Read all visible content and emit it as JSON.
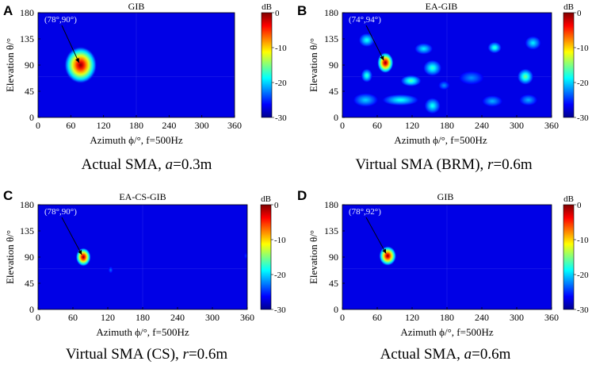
{
  "chart_data": [
    {
      "type": "heatmap",
      "panel": "A",
      "title": "GIB",
      "caption_prefix": "Actual SMA, ",
      "caption_var": "a",
      "caption_suffix": "=0.3m",
      "xlabel": "Azimuth ϕ/°, f=500Hz",
      "ylabel": "Elevation θ/°",
      "xticks": [
        "0",
        "60",
        "120",
        "180",
        "240",
        "300",
        "360"
      ],
      "yticks": [
        "0",
        "45",
        "90",
        "135",
        "180"
      ],
      "xlim": [
        0,
        360
      ],
      "ylim": [
        0,
        180
      ],
      "colorbar": {
        "unit": "dB",
        "ticks": [
          "0",
          "-10",
          "-20",
          "-30"
        ],
        "range": [
          -30,
          0
        ]
      },
      "annotation": "(78°,90°)",
      "peak": {
        "azimuth": 78,
        "elevation": 90
      },
      "blobs": [
        {
          "azimuth": 78,
          "elevation": 90,
          "spread_az": 30,
          "spread_el": 32,
          "level": 0
        }
      ]
    },
    {
      "type": "heatmap",
      "panel": "B",
      "title": "EA-GIB",
      "caption_prefix": "Virtual SMA (BRM), ",
      "caption_var": "r",
      "caption_suffix": "=0.6m",
      "xlabel": "Azimuth ϕ/°, f=500Hz",
      "ylabel": "Elevation θ/°",
      "xticks": [
        "0",
        "60",
        "120",
        "180",
        "240",
        "300",
        "360"
      ],
      "yticks": [
        "0",
        "45",
        "90",
        "135",
        "180"
      ],
      "xlim": [
        0,
        360
      ],
      "ylim": [
        0,
        180
      ],
      "colorbar": {
        "unit": "dB",
        "ticks": [
          "0",
          "-10",
          "-20",
          "-30"
        ],
        "range": [
          -30,
          0
        ]
      },
      "annotation": "(74°,94°)",
      "peak": {
        "azimuth": 74,
        "elevation": 94
      },
      "blobs": [
        {
          "azimuth": 74,
          "elevation": 94,
          "spread_az": 14,
          "spread_el": 18,
          "level": 0
        },
        {
          "azimuth": 42,
          "elevation": 133,
          "spread_az": 14,
          "spread_el": 12,
          "level": -18
        },
        {
          "azimuth": 42,
          "elevation": 72,
          "spread_az": 10,
          "spread_el": 12,
          "level": -17
        },
        {
          "azimuth": 118,
          "elevation": 63,
          "spread_az": 18,
          "spread_el": 10,
          "level": -16
        },
        {
          "azimuth": 100,
          "elevation": 30,
          "spread_az": 32,
          "spread_el": 10,
          "level": -18
        },
        {
          "azimuth": 155,
          "elevation": 85,
          "spread_az": 16,
          "spread_el": 14,
          "level": -17
        },
        {
          "azimuth": 155,
          "elevation": 20,
          "spread_az": 14,
          "spread_el": 14,
          "level": -18
        },
        {
          "azimuth": 140,
          "elevation": 118,
          "spread_az": 16,
          "spread_el": 10,
          "level": -19
        },
        {
          "azimuth": 40,
          "elevation": 30,
          "spread_az": 22,
          "spread_el": 12,
          "level": -20
        },
        {
          "azimuth": 222,
          "elevation": 68,
          "spread_az": 22,
          "spread_el": 12,
          "level": -22
        },
        {
          "azimuth": 262,
          "elevation": 120,
          "spread_az": 12,
          "spread_el": 10,
          "level": -17
        },
        {
          "azimuth": 315,
          "elevation": 70,
          "spread_az": 14,
          "spread_el": 14,
          "level": -15
        },
        {
          "azimuth": 328,
          "elevation": 128,
          "spread_az": 14,
          "spread_el": 12,
          "level": -19
        },
        {
          "azimuth": 258,
          "elevation": 28,
          "spread_az": 18,
          "spread_el": 10,
          "level": -21
        },
        {
          "azimuth": 320,
          "elevation": 30,
          "spread_az": 16,
          "spread_el": 10,
          "level": -21
        },
        {
          "azimuth": 175,
          "elevation": 55,
          "spread_az": 10,
          "spread_el": 8,
          "level": -22
        }
      ]
    },
    {
      "type": "heatmap",
      "panel": "C",
      "title": "EA-CS-GIB",
      "caption_prefix": "Virtual SMA (CS), ",
      "caption_var": "r",
      "caption_suffix": "=0.6m",
      "xlabel": "Azimuth ϕ/°, f=500Hz",
      "ylabel": "Elevation θ/°",
      "xticks": [
        "0",
        "60",
        "120",
        "180",
        "240",
        "300",
        "360"
      ],
      "yticks": [
        "0",
        "45",
        "90",
        "135",
        "180"
      ],
      "xlim": [
        0,
        360
      ],
      "ylim": [
        0,
        180
      ],
      "colorbar": {
        "unit": "dB",
        "ticks": [
          "0",
          "-10",
          "-20",
          "-30"
        ],
        "range": [
          -30,
          0
        ]
      },
      "annotation": "(78°,90°)",
      "peak": {
        "azimuth": 78,
        "elevation": 90
      },
      "blobs": [
        {
          "azimuth": 78,
          "elevation": 90,
          "spread_az": 13,
          "spread_el": 16,
          "level": 0
        },
        {
          "azimuth": 125,
          "elevation": 68,
          "spread_az": 4,
          "spread_el": 6,
          "level": -23
        },
        {
          "azimuth": 358,
          "elevation": 92,
          "spread_az": 4,
          "spread_el": 6,
          "level": -25
        }
      ]
    },
    {
      "type": "heatmap",
      "panel": "D",
      "title": "GIB",
      "caption_prefix": "Actual SMA, ",
      "caption_var": "a",
      "caption_suffix": "=0.6m",
      "xlabel": "Azimuth ϕ/°, f=500Hz",
      "ylabel": "Elevation θ/°",
      "xticks": [
        "0",
        "60",
        "120",
        "180",
        "240",
        "300",
        "360"
      ],
      "yticks": [
        "0",
        "45",
        "90",
        "135",
        "180"
      ],
      "xlim": [
        0,
        360
      ],
      "ylim": [
        0,
        180
      ],
      "colorbar": {
        "unit": "dB",
        "ticks": [
          "0",
          "-10",
          "-20",
          "-30"
        ],
        "range": [
          -30,
          0
        ]
      },
      "annotation": "(78°,92°)",
      "peak": {
        "azimuth": 78,
        "elevation": 92
      },
      "blobs": [
        {
          "azimuth": 78,
          "elevation": 92,
          "spread_az": 15,
          "spread_el": 17,
          "level": 0
        }
      ]
    }
  ]
}
